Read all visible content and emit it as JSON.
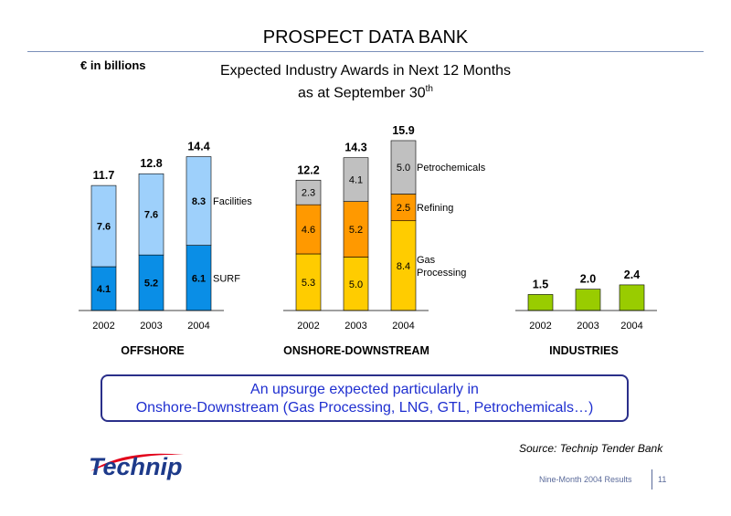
{
  "header": {
    "title": "PROSPECT DATA BANK",
    "unit": "€ in billions",
    "subtitle_line1": "Expected Industry Awards in Next 12 Months",
    "subtitle_line2": "as at September 30",
    "subtitle_sup": "th"
  },
  "chart_data": [
    {
      "type": "bar",
      "stacked": true,
      "title": "OFFSHORE",
      "categories": [
        "2002",
        "2003",
        "2004"
      ],
      "series": [
        {
          "name": "SURF",
          "values": [
            4.1,
            5.2,
            6.1
          ],
          "color": "#0a8ee6"
        },
        {
          "name": "Facilities",
          "values": [
            7.6,
            7.6,
            8.3
          ],
          "color": "#9ed0fb"
        }
      ],
      "totals": [
        11.7,
        12.8,
        14.4
      ]
    },
    {
      "type": "bar",
      "stacked": true,
      "title": "ONSHORE-DOWNSTREAM",
      "categories": [
        "2002",
        "2003",
        "2004"
      ],
      "series": [
        {
          "name": "Gas Processing",
          "values": [
            5.3,
            5.0,
            8.4
          ],
          "color": "#ffcc00"
        },
        {
          "name": "Refining",
          "values": [
            4.6,
            5.2,
            2.5
          ],
          "color": "#ff9900"
        },
        {
          "name": "Petrochemicals",
          "values": [
            2.3,
            4.1,
            5.0
          ],
          "color": "#c0c0c0"
        }
      ],
      "totals": [
        12.2,
        14.3,
        15.9
      ]
    },
    {
      "type": "bar",
      "title": "INDUSTRIES",
      "categories": [
        "2002",
        "2003",
        "2004"
      ],
      "series": [
        {
          "name": "",
          "values": [
            1.5,
            2.0,
            2.4
          ],
          "color": "#99cc00"
        }
      ],
      "totals": [
        1.5,
        2.0,
        2.4
      ]
    }
  ],
  "callout": {
    "line1": "An upsurge expected particularly in",
    "line2": "Onshore-Downstream (Gas Processing, LNG, GTL, Petrochemicals…)"
  },
  "source": "Source: Technip Tender Bank",
  "logo_text": "Technip",
  "footer": {
    "text": "Nine-Month 2004 Results",
    "page": "11"
  }
}
